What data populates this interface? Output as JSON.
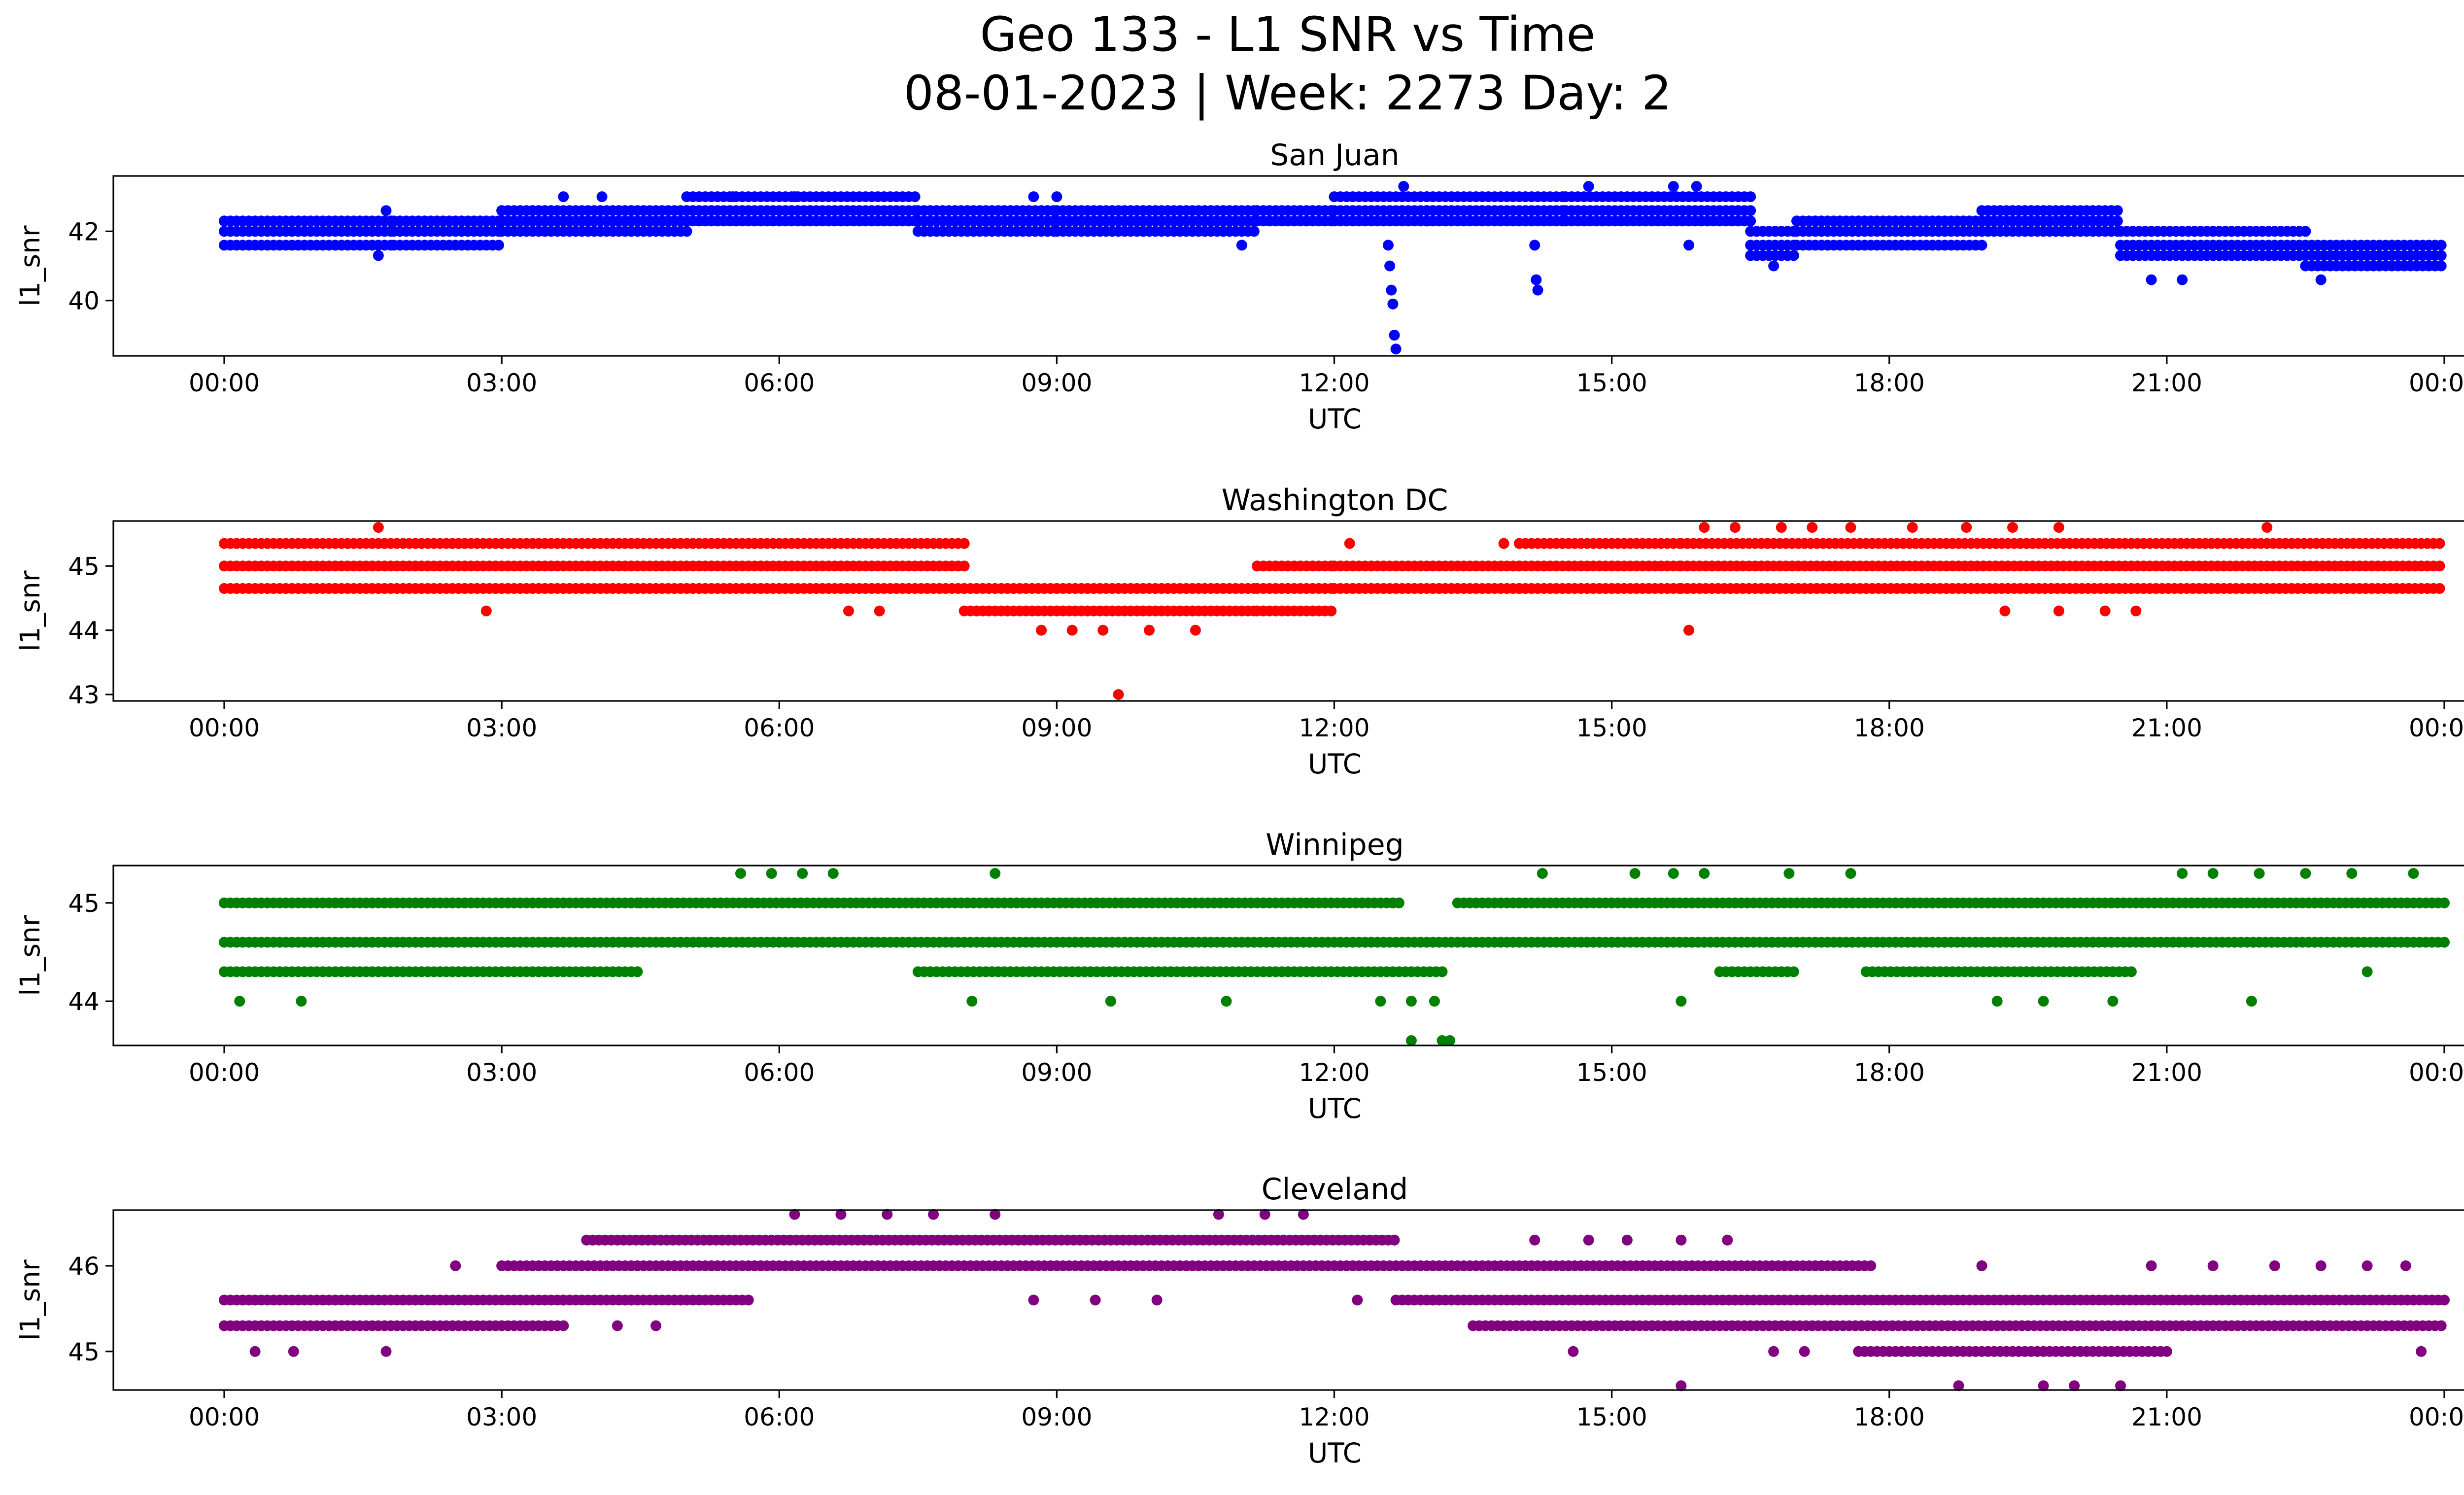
{
  "figure": {
    "title_line1": "Geo 133 - L1 SNR vs Time",
    "title_line2": "08-01-2023 | Week: 2273 Day: 2"
  },
  "chart_data": [
    {
      "type": "scatter",
      "title": "San Juan",
      "xlabel": "UTC",
      "ylabel": "l1_snr",
      "color": "#0000ff",
      "xlim": [
        "00:00",
        "24:00"
      ],
      "ylim": [
        38.4,
        43.6
      ],
      "xtick_labels": [
        "00:00",
        "03:00",
        "06:00",
        "09:00",
        "12:00",
        "15:00",
        "18:00",
        "21:00",
        "00:00"
      ],
      "ytick_values": [
        40,
        42
      ],
      "ytick_labels": [
        "40",
        "42"
      ],
      "grid": false,
      "segments": [
        {
          "from": "00:00",
          "to": "01:50",
          "levels": [
            41.6,
            42.0,
            42.3
          ]
        },
        {
          "from": "01:50",
          "to": "03:00",
          "levels": [
            41.6,
            42.0,
            42.3
          ]
        },
        {
          "from": "03:00",
          "to": "05:00",
          "levels": [
            42.0,
            42.3,
            42.6
          ]
        },
        {
          "from": "05:00",
          "to": "07:30",
          "levels": [
            42.3,
            42.6,
            43.0
          ]
        },
        {
          "from": "07:30",
          "to": "09:00",
          "levels": [
            42.0,
            42.3,
            42.6
          ]
        },
        {
          "from": "09:00",
          "to": "11:10",
          "levels": [
            42.0,
            42.3,
            42.6
          ]
        },
        {
          "from": "11:10",
          "to": "12:00",
          "levels": [
            42.3,
            42.6
          ]
        },
        {
          "from": "12:00",
          "to": "13:00",
          "levels": [
            42.6,
            43.0,
            42.3
          ]
        },
        {
          "from": "13:00",
          "to": "14:30",
          "levels": [
            42.3,
            42.6,
            43.0
          ]
        },
        {
          "from": "14:30",
          "to": "16:30",
          "levels": [
            42.6,
            43.0,
            42.3
          ]
        },
        {
          "from": "16:30",
          "to": "17:00",
          "levels": [
            41.6,
            42.0,
            41.3
          ]
        },
        {
          "from": "17:00",
          "to": "19:00",
          "levels": [
            41.6,
            42.0,
            42.3
          ]
        },
        {
          "from": "19:00",
          "to": "20:30",
          "levels": [
            42.0,
            42.3,
            42.6
          ]
        },
        {
          "from": "20:30",
          "to": "21:30",
          "levels": [
            41.6,
            42.0,
            41.3
          ]
        },
        {
          "from": "21:30",
          "to": "22:30",
          "levels": [
            41.3,
            41.6,
            42.0
          ]
        },
        {
          "from": "22:30",
          "to": "24:00",
          "levels": [
            41.0,
            41.3,
            41.6
          ]
        }
      ],
      "points": [
        {
          "x": "01:40",
          "y": 41.3
        },
        {
          "x": "01:45",
          "y": 42.6
        },
        {
          "x": "03:40",
          "y": 43.0
        },
        {
          "x": "04:05",
          "y": 43.0
        },
        {
          "x": "05:30",
          "y": 43.0
        },
        {
          "x": "06:10",
          "y": 43.0
        },
        {
          "x": "08:45",
          "y": 43.0
        },
        {
          "x": "09:00",
          "y": 43.0
        },
        {
          "x": "11:00",
          "y": 41.6
        },
        {
          "x": "12:35",
          "y": 41.6
        },
        {
          "x": "12:36",
          "y": 41.0
        },
        {
          "x": "12:37",
          "y": 40.3
        },
        {
          "x": "12:38",
          "y": 39.9
        },
        {
          "x": "12:39",
          "y": 39.0
        },
        {
          "x": "12:40",
          "y": 38.6
        },
        {
          "x": "12:45",
          "y": 43.3
        },
        {
          "x": "14:10",
          "y": 41.6
        },
        {
          "x": "14:11",
          "y": 40.6
        },
        {
          "x": "14:12",
          "y": 40.3
        },
        {
          "x": "14:45",
          "y": 43.3
        },
        {
          "x": "15:40",
          "y": 43.3
        },
        {
          "x": "15:55",
          "y": 43.3
        },
        {
          "x": "15:50",
          "y": 41.6
        },
        {
          "x": "16:45",
          "y": 41.0
        },
        {
          "x": "20:50",
          "y": 40.6
        },
        {
          "x": "21:10",
          "y": 40.6
        },
        {
          "x": "22:40",
          "y": 40.6
        }
      ]
    },
    {
      "type": "scatter",
      "title": "Washington DC",
      "xlabel": "UTC",
      "ylabel": "l1_snr",
      "color": "#ff0000",
      "xlim": [
        "00:00",
        "24:00"
      ],
      "ylim": [
        42.9,
        45.7
      ],
      "xtick_labels": [
        "00:00",
        "03:00",
        "06:00",
        "09:00",
        "12:00",
        "15:00",
        "18:00",
        "21:00",
        "00:00"
      ],
      "ytick_values": [
        43,
        44,
        45
      ],
      "ytick_labels": [
        "43",
        "44",
        "45"
      ],
      "grid": false,
      "segments": [
        {
          "from": "00:00",
          "to": "08:00",
          "levels": [
            44.65,
            45.0,
            45.35
          ]
        },
        {
          "from": "08:00",
          "to": "11:10",
          "levels": [
            44.3,
            44.65
          ]
        },
        {
          "from": "11:10",
          "to": "12:00",
          "levels": [
            44.3,
            44.65,
            45.0
          ]
        },
        {
          "from": "12:00",
          "to": "14:00",
          "levels": [
            44.65,
            45.0
          ]
        },
        {
          "from": "14:00",
          "to": "15:45",
          "levels": [
            44.65,
            45.0,
            45.35
          ]
        },
        {
          "from": "15:45",
          "to": "24:00",
          "levels": [
            45.0,
            45.35,
            44.65
          ]
        }
      ],
      "points": [
        {
          "x": "01:40",
          "y": 45.6
        },
        {
          "x": "02:50",
          "y": 44.3
        },
        {
          "x": "06:45",
          "y": 44.3
        },
        {
          "x": "07:05",
          "y": 44.3
        },
        {
          "x": "08:50",
          "y": 44.0
        },
        {
          "x": "09:10",
          "y": 44.0
        },
        {
          "x": "09:30",
          "y": 44.0
        },
        {
          "x": "09:40",
          "y": 43.0
        },
        {
          "x": "10:00",
          "y": 44.0
        },
        {
          "x": "10:30",
          "y": 44.0
        },
        {
          "x": "11:10",
          "y": 45.0
        },
        {
          "x": "12:10",
          "y": 45.35
        },
        {
          "x": "13:50",
          "y": 45.35
        },
        {
          "x": "15:50",
          "y": 44.0
        },
        {
          "x": "16:00",
          "y": 45.6
        },
        {
          "x": "16:20",
          "y": 45.6
        },
        {
          "x": "16:50",
          "y": 45.6
        },
        {
          "x": "17:10",
          "y": 45.6
        },
        {
          "x": "17:35",
          "y": 45.6
        },
        {
          "x": "18:15",
          "y": 45.6
        },
        {
          "x": "18:50",
          "y": 45.6
        },
        {
          "x": "19:20",
          "y": 45.6
        },
        {
          "x": "19:50",
          "y": 45.6
        },
        {
          "x": "22:05",
          "y": 45.6
        },
        {
          "x": "19:15",
          "y": 44.3
        },
        {
          "x": "19:50",
          "y": 44.3
        },
        {
          "x": "20:20",
          "y": 44.3
        },
        {
          "x": "20:40",
          "y": 44.3
        }
      ]
    },
    {
      "type": "scatter",
      "title": "Winnipeg",
      "xlabel": "UTC",
      "ylabel": "l1_snr",
      "color": "#008000",
      "xlim": [
        "00:00",
        "24:00"
      ],
      "ylim": [
        43.55,
        45.38
      ],
      "xtick_labels": [
        "00:00",
        "03:00",
        "06:00",
        "09:00",
        "12:00",
        "15:00",
        "18:00",
        "21:00",
        "00:00"
      ],
      "ytick_values": [
        44,
        45
      ],
      "ytick_labels": [
        "44",
        "45"
      ],
      "grid": false,
      "segments": [
        {
          "from": "00:00",
          "to": "24:00",
          "levels": [
            44.6
          ]
        },
        {
          "from": "00:00",
          "to": "04:30",
          "levels": [
            44.3,
            45.0
          ]
        },
        {
          "from": "04:30",
          "to": "12:45",
          "levels": [
            45.0
          ]
        },
        {
          "from": "07:30",
          "to": "13:10",
          "levels": [
            44.3
          ]
        },
        {
          "from": "13:20",
          "to": "24:00",
          "levels": [
            45.0
          ]
        },
        {
          "from": "16:10",
          "to": "17:00",
          "levels": [
            44.3
          ]
        },
        {
          "from": "17:45",
          "to": "20:40",
          "levels": [
            44.3
          ]
        }
      ],
      "points": [
        {
          "x": "00:10",
          "y": 44.0
        },
        {
          "x": "00:50",
          "y": 44.0
        },
        {
          "x": "05:35",
          "y": 45.3
        },
        {
          "x": "05:55",
          "y": 45.3
        },
        {
          "x": "06:15",
          "y": 45.3
        },
        {
          "x": "06:35",
          "y": 45.3
        },
        {
          "x": "08:20",
          "y": 45.3
        },
        {
          "x": "08:05",
          "y": 44.0
        },
        {
          "x": "09:35",
          "y": 44.0
        },
        {
          "x": "10:50",
          "y": 44.0
        },
        {
          "x": "12:30",
          "y": 44.0
        },
        {
          "x": "12:50",
          "y": 44.0
        },
        {
          "x": "13:05",
          "y": 44.0
        },
        {
          "x": "12:50",
          "y": 43.6
        },
        {
          "x": "13:10",
          "y": 43.6
        },
        {
          "x": "13:15",
          "y": 43.6
        },
        {
          "x": "14:15",
          "y": 45.3
        },
        {
          "x": "15:15",
          "y": 45.3
        },
        {
          "x": "15:40",
          "y": 45.3
        },
        {
          "x": "16:00",
          "y": 45.3
        },
        {
          "x": "16:55",
          "y": 45.3
        },
        {
          "x": "17:35",
          "y": 45.3
        },
        {
          "x": "15:45",
          "y": 44.0
        },
        {
          "x": "19:10",
          "y": 44.0
        },
        {
          "x": "19:40",
          "y": 44.0
        },
        {
          "x": "20:25",
          "y": 44.0
        },
        {
          "x": "21:10",
          "y": 45.3
        },
        {
          "x": "21:30",
          "y": 45.3
        },
        {
          "x": "22:00",
          "y": 45.3
        },
        {
          "x": "22:30",
          "y": 45.3
        },
        {
          "x": "23:00",
          "y": 45.3
        },
        {
          "x": "23:40",
          "y": 45.3
        },
        {
          "x": "21:55",
          "y": 44.0
        },
        {
          "x": "23:10",
          "y": 44.3
        }
      ]
    },
    {
      "type": "scatter",
      "title": "Cleveland",
      "xlabel": "UTC",
      "ylabel": "l1_snr",
      "color": "#800080",
      "xlim": [
        "00:00",
        "24:00"
      ],
      "ylim": [
        44.55,
        46.65
      ],
      "xtick_labels": [
        "00:00",
        "03:00",
        "06:00",
        "09:00",
        "12:00",
        "15:00",
        "18:00",
        "21:00",
        "00:00"
      ],
      "ytick_values": [
        45,
        46
      ],
      "ytick_labels": [
        "45",
        "46"
      ],
      "grid": false,
      "segments": [
        {
          "from": "00:00",
          "to": "03:40",
          "levels": [
            45.3,
            45.6
          ]
        },
        {
          "from": "03:40",
          "to": "05:40",
          "levels": [
            45.6
          ]
        },
        {
          "from": "03:00",
          "to": "17:50",
          "levels": [
            46.0
          ]
        },
        {
          "from": "03:55",
          "to": "12:40",
          "levels": [
            46.3
          ]
        },
        {
          "from": "12:40",
          "to": "24:00",
          "levels": [
            45.6
          ]
        },
        {
          "from": "13:30",
          "to": "24:00",
          "levels": [
            45.3
          ]
        },
        {
          "from": "17:40",
          "to": "21:00",
          "levels": [
            45.0
          ]
        }
      ],
      "points": [
        {
          "x": "00:20",
          "y": 45.0
        },
        {
          "x": "00:45",
          "y": 45.0
        },
        {
          "x": "01:45",
          "y": 45.0
        },
        {
          "x": "02:30",
          "y": 46.0
        },
        {
          "x": "04:15",
          "y": 45.3
        },
        {
          "x": "04:40",
          "y": 45.3
        },
        {
          "x": "06:10",
          "y": 46.6
        },
        {
          "x": "06:40",
          "y": 46.6
        },
        {
          "x": "07:10",
          "y": 46.6
        },
        {
          "x": "07:40",
          "y": 46.6
        },
        {
          "x": "08:20",
          "y": 46.6
        },
        {
          "x": "08:45",
          "y": 45.6
        },
        {
          "x": "09:25",
          "y": 45.6
        },
        {
          "x": "10:05",
          "y": 45.6
        },
        {
          "x": "10:45",
          "y": 46.6
        },
        {
          "x": "11:15",
          "y": 46.6
        },
        {
          "x": "11:40",
          "y": 46.6
        },
        {
          "x": "12:15",
          "y": 45.6
        },
        {
          "x": "14:10",
          "y": 46.3
        },
        {
          "x": "14:45",
          "y": 46.3
        },
        {
          "x": "15:10",
          "y": 46.3
        },
        {
          "x": "15:45",
          "y": 46.3
        },
        {
          "x": "16:15",
          "y": 46.3
        },
        {
          "x": "14:35",
          "y": 45.0
        },
        {
          "x": "15:45",
          "y": 44.6
        },
        {
          "x": "16:45",
          "y": 45.0
        },
        {
          "x": "17:05",
          "y": 45.0
        },
        {
          "x": "18:45",
          "y": 44.6
        },
        {
          "x": "19:00",
          "y": 46.0
        },
        {
          "x": "19:40",
          "y": 44.6
        },
        {
          "x": "20:00",
          "y": 44.6
        },
        {
          "x": "20:30",
          "y": 44.6
        },
        {
          "x": "20:50",
          "y": 46.0
        },
        {
          "x": "21:30",
          "y": 46.0
        },
        {
          "x": "22:10",
          "y": 46.0
        },
        {
          "x": "22:40",
          "y": 46.0
        },
        {
          "x": "23:10",
          "y": 46.0
        },
        {
          "x": "23:35",
          "y": 46.0
        },
        {
          "x": "23:45",
          "y": 45.0
        }
      ]
    }
  ]
}
